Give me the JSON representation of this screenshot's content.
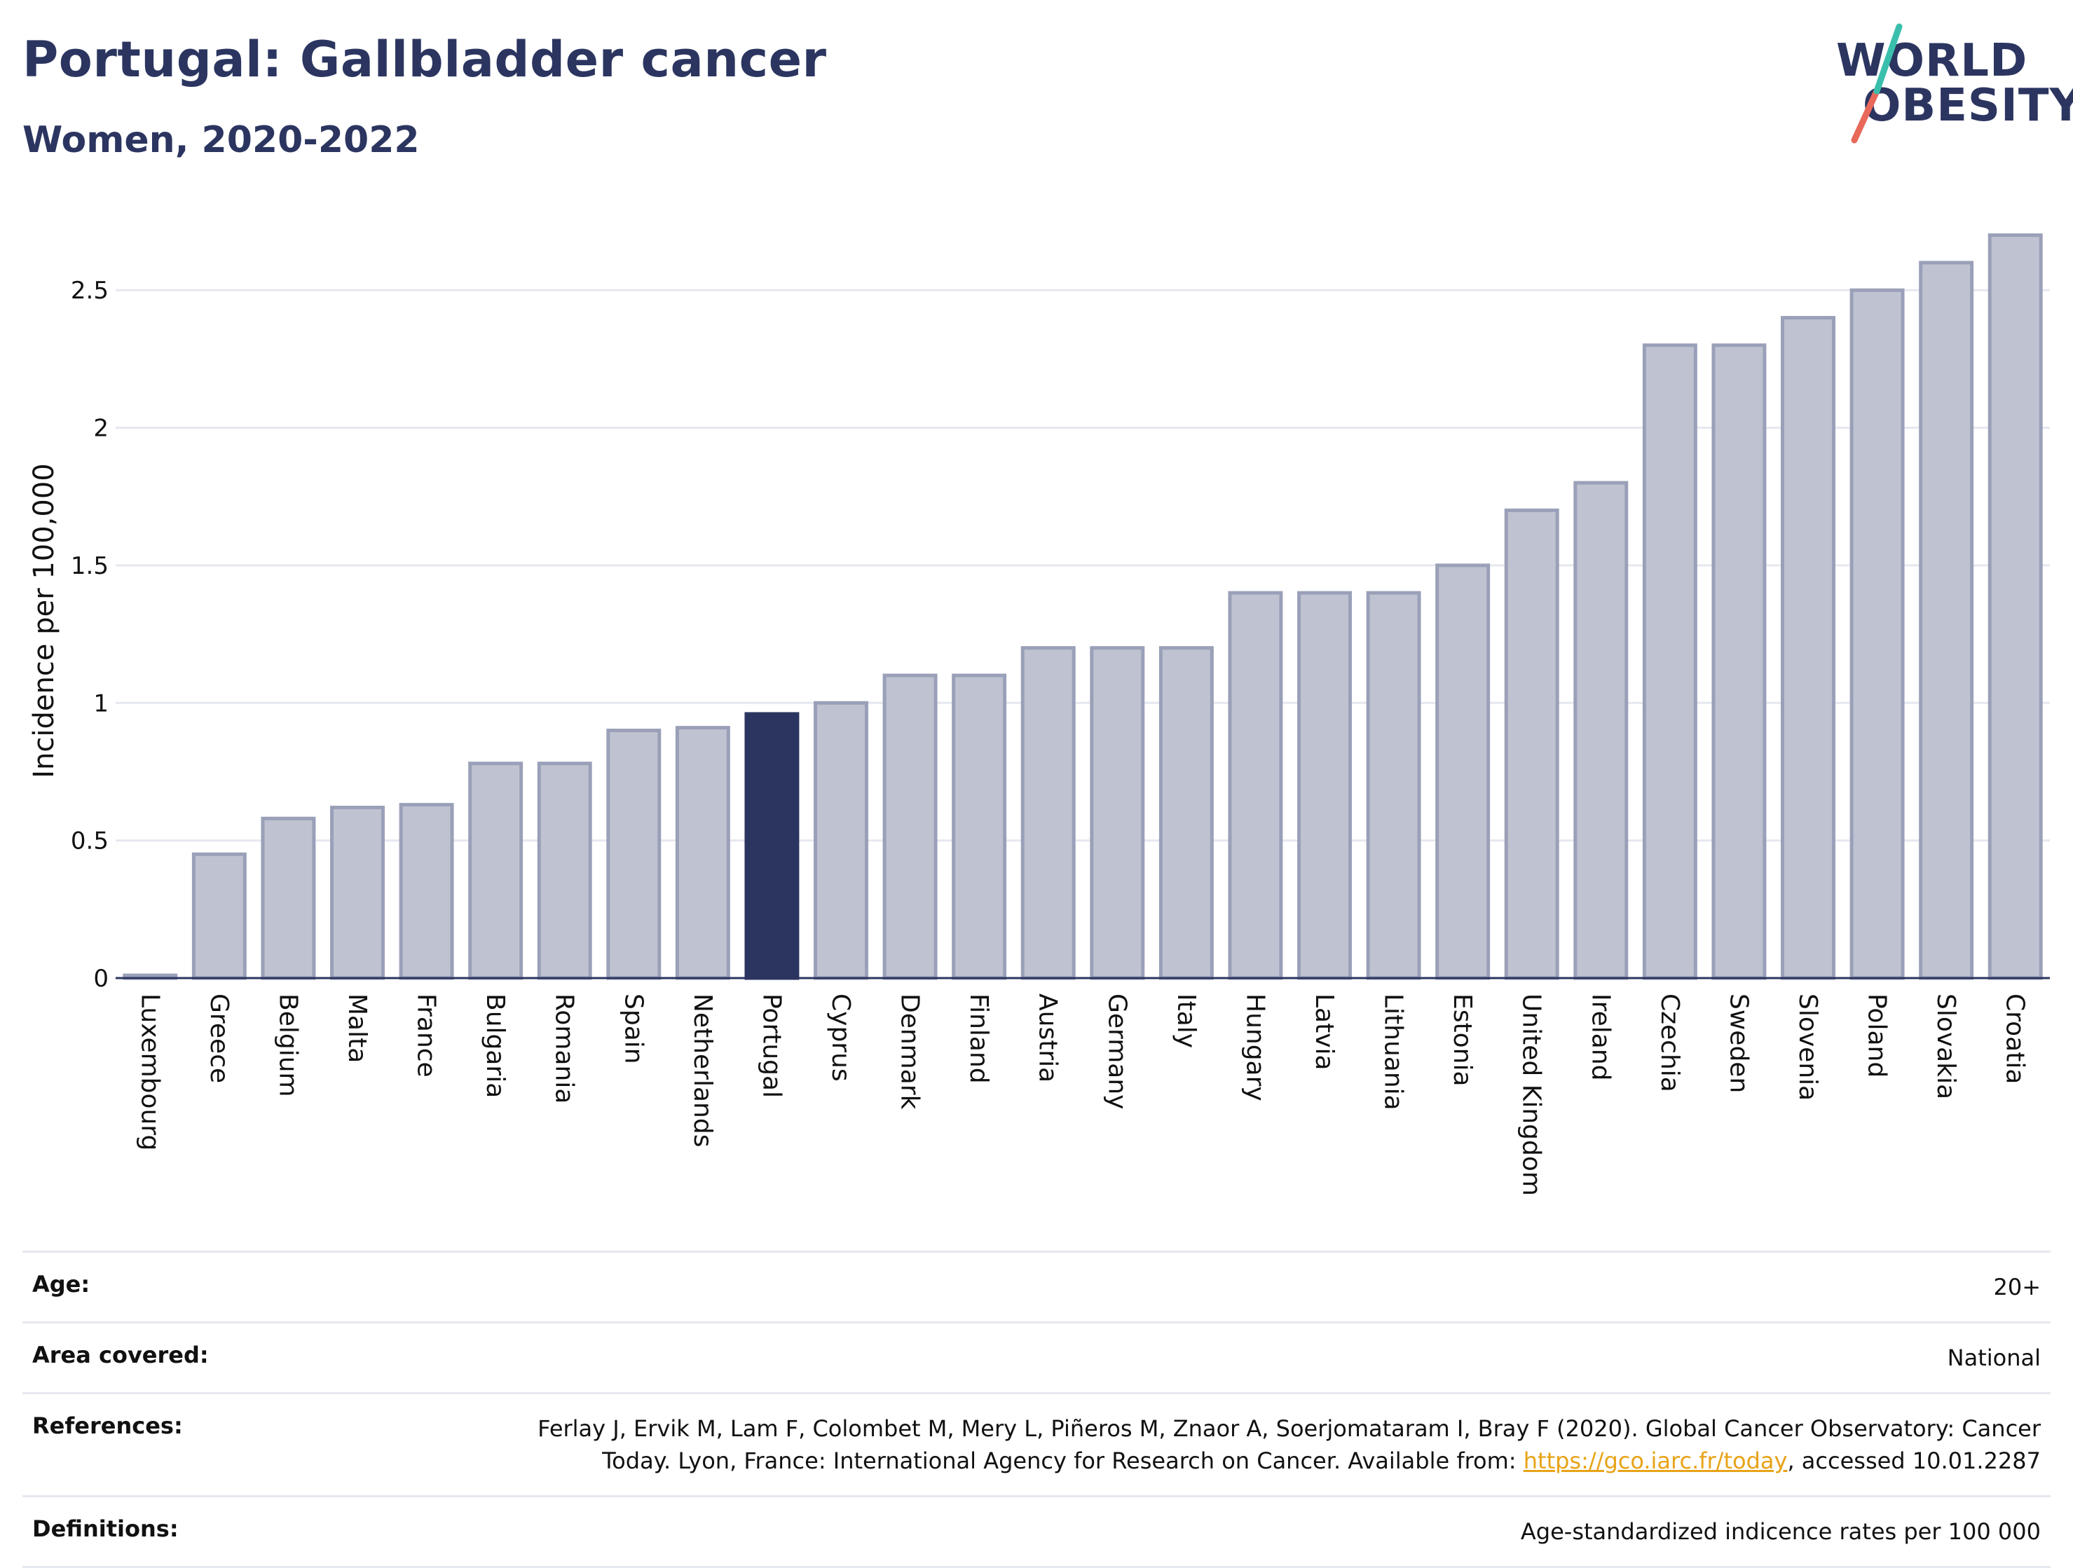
{
  "header": {
    "title": "Portugal: Gallbladder cancer",
    "subtitle": "Women, 2020-2022"
  },
  "logo": {
    "line1": "WORLD",
    "line2": "OBESITY",
    "accent_top": "#3bbfad",
    "accent_bottom": "#e8685a"
  },
  "colors": {
    "bar": "#bfc3d1",
    "bar_stroke": "#9aa0b8",
    "highlight": "#2b3560",
    "grid": "#e6e8f0",
    "axis": "#2b3560"
  },
  "chart_data": {
    "type": "bar",
    "title": "Portugal: Gallbladder cancer",
    "subtitle": "Women, 2020-2022",
    "xlabel": "",
    "ylabel": "Incidence per 100,000",
    "ylim": [
      0,
      2.75
    ],
    "yticks": [
      0,
      0.5,
      1,
      1.5,
      2,
      2.5
    ],
    "ytick_labels": [
      "0",
      "0.5",
      "1",
      "1.5",
      "2",
      "2.5"
    ],
    "grid": true,
    "highlight": "Portugal",
    "categories": [
      "Luxembourg",
      "Greece",
      "Belgium",
      "Malta",
      "France",
      "Bulgaria",
      "Romania",
      "Spain",
      "Netherlands",
      "Portugal",
      "Cyprus",
      "Denmark",
      "Finland",
      "Austria",
      "Germany",
      "Italy",
      "Hungary",
      "Latvia",
      "Lithuania",
      "Estonia",
      "United Kingdom",
      "Ireland",
      "Czechia",
      "Sweden",
      "Slovenia",
      "Poland",
      "Slovakia",
      "Croatia"
    ],
    "values": [
      0.01,
      0.45,
      0.58,
      0.62,
      0.63,
      0.78,
      0.78,
      0.9,
      0.91,
      0.96,
      1.0,
      1.1,
      1.1,
      1.2,
      1.2,
      1.2,
      1.4,
      1.4,
      1.4,
      1.5,
      1.7,
      1.8,
      2.3,
      2.3,
      2.4,
      2.5,
      2.6,
      2.7
    ]
  },
  "meta": {
    "age": {
      "label": "Age:",
      "value": "20+"
    },
    "area": {
      "label": "Area covered:",
      "value": "National"
    },
    "references": {
      "label": "References:",
      "line1": "Ferlay J, Ervik M, Lam F, Colombet M, Mery L, Piñeros M, Znaor A, Soerjomataram I, Bray F (2020). Global Cancer Observatory: Cancer",
      "line2_prefix": "Today. Lyon, France: International Agency for Research on Cancer. Available from: ",
      "link": "https://gco.iarc.fr/today",
      "line2_suffix": ", accessed 10.01.2287"
    },
    "definitions": {
      "label": "Definitions:",
      "value": "Age-standardized indicence rates per 100 000"
    }
  }
}
